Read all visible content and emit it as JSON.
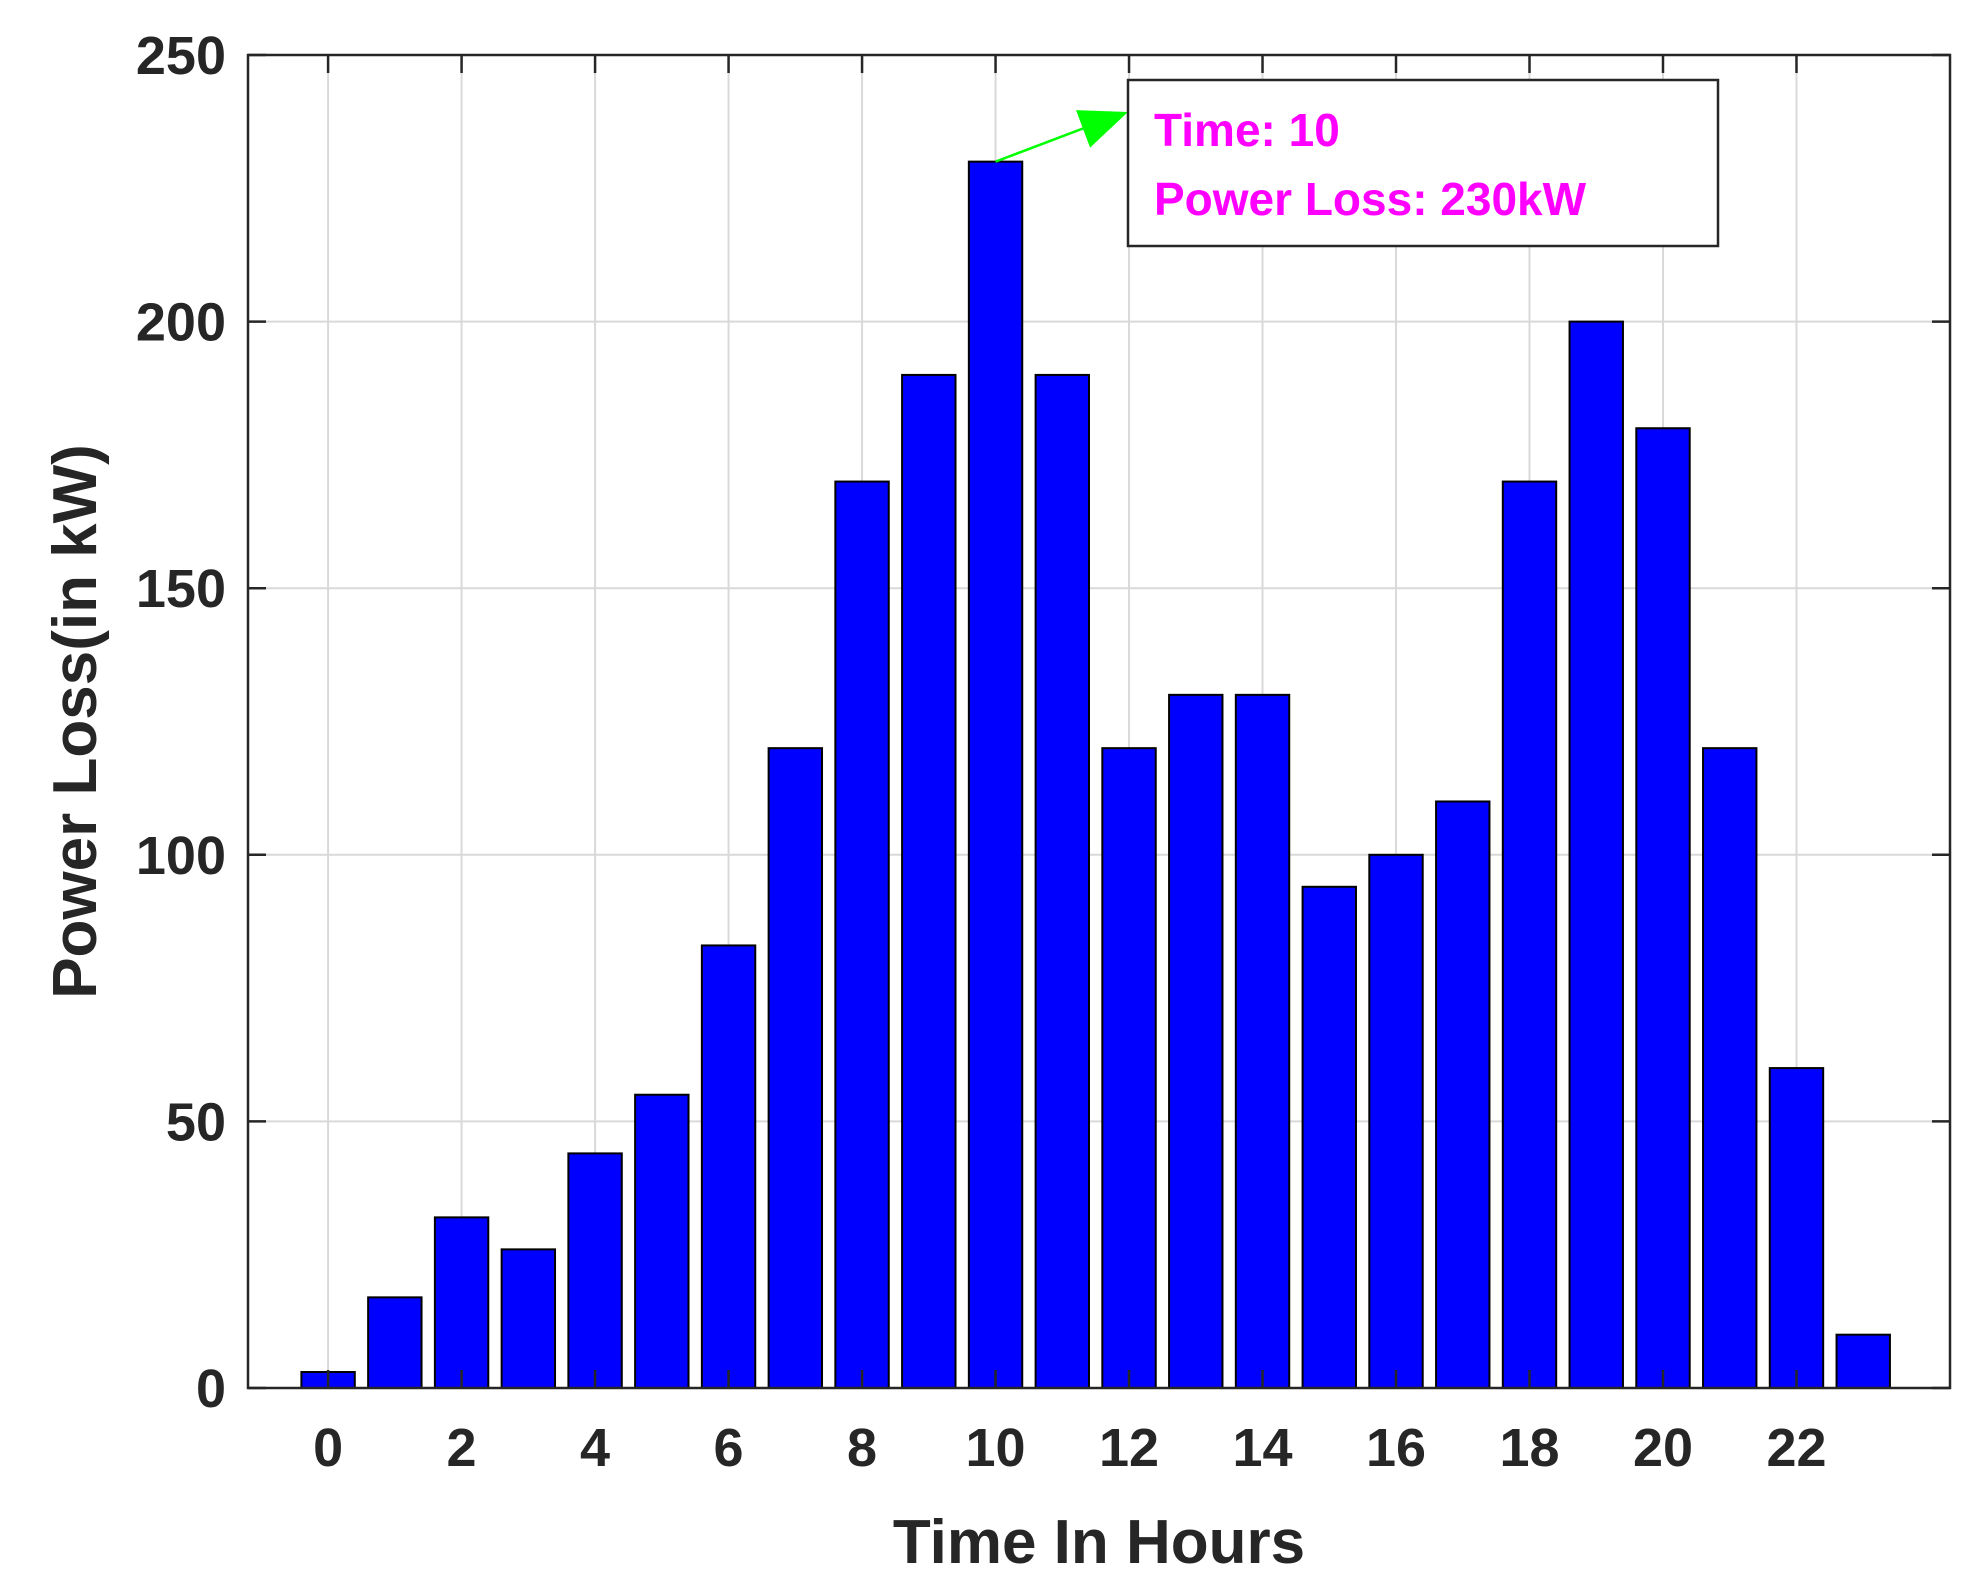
{
  "chart_data": {
    "type": "bar",
    "x": [
      0,
      1,
      2,
      3,
      4,
      5,
      6,
      7,
      8,
      9,
      10,
      11,
      12,
      13,
      14,
      15,
      16,
      17,
      18,
      19,
      20,
      21,
      22,
      23
    ],
    "values": [
      3,
      17,
      32,
      26,
      44,
      55,
      83,
      120,
      170,
      190,
      230,
      190,
      120,
      130,
      130,
      94,
      100,
      110,
      170,
      200,
      180,
      120,
      60,
      10
    ],
    "xlabel": "Time In Hours",
    "ylabel": "Power Loss(in kW)",
    "xticks": [
      0,
      2,
      4,
      6,
      8,
      10,
      12,
      14,
      16,
      18,
      20,
      22
    ],
    "yticks": [
      0,
      50,
      100,
      150,
      200,
      250
    ],
    "xlim": [
      -1.2,
      24.3
    ],
    "ylim": [
      0,
      250
    ],
    "grid": true,
    "bar_color": "#0000ff",
    "annotation": {
      "line1": "Time: 10",
      "line2": "Power Loss: 230kW",
      "text_color": "#ff00ff",
      "arrow_color": "#00ff00",
      "points_to": {
        "x": 10,
        "y": 230
      }
    }
  }
}
